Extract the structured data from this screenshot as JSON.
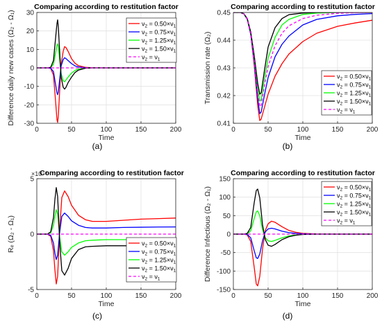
{
  "panel_labels": [
    "(a)",
    "(b)",
    "(c)",
    "(d)"
  ],
  "legend_entries": [
    {
      "sub": "2",
      "text": " = 0.50×ν",
      "sub2": "1",
      "color": "#ff0000",
      "dash": false
    },
    {
      "sub": "2",
      "text": " = 0.75×ν",
      "sub2": "1",
      "color": "#0000ff",
      "dash": false
    },
    {
      "sub": "2",
      "text": " = 1.25×ν",
      "sub2": "1",
      "color": "#00ff00",
      "dash": false
    },
    {
      "sub": "2",
      "text": " = 1.50×ν",
      "sub2": "1",
      "color": "#000000",
      "dash": false
    },
    {
      "sub": "2",
      "text": " = ν",
      "sub2": "1",
      "color": "#ff00ff",
      "dash": true
    }
  ],
  "chart_data": [
    {
      "type": "line",
      "title": "Comparing according to restitution factor",
      "xlabel": "Time",
      "ylabel": "Difference daily new cases (Ω₂ - Ω₁)",
      "xlim": [
        0,
        200
      ],
      "ylim": [
        -30,
        30
      ],
      "xticks": [
        0,
        50,
        100,
        150,
        200
      ],
      "yticks": [
        -30,
        -20,
        -10,
        0,
        10,
        20,
        30
      ],
      "ytick_labels": [
        "-30",
        "-20",
        "-10",
        "0",
        "10",
        "20",
        "30"
      ],
      "exponent_label": "",
      "grid": true,
      "legend_position": "top-right",
      "series": [
        {
          "name": "ν₂ = 0.50×ν₁",
          "color": "#ff0000",
          "x": [
            0,
            15,
            20,
            24,
            27,
            29,
            30,
            31,
            33,
            35,
            38,
            40,
            42,
            45,
            50,
            55,
            60,
            70,
            80,
            100,
            120,
            150,
            200
          ],
          "y": [
            0,
            0,
            -0.3,
            -4,
            -18,
            -28,
            -29.5,
            -26,
            -12,
            2,
            9,
            11.5,
            11,
            9,
            5,
            2.5,
            1.2,
            0.3,
            0.1,
            0,
            0,
            0,
            0
          ]
        },
        {
          "name": "ν₂ = 0.75×ν₁",
          "color": "#0000ff",
          "x": [
            0,
            15,
            20,
            24,
            27,
            29,
            30,
            31,
            33,
            35,
            38,
            40,
            42,
            45,
            50,
            55,
            60,
            70,
            80,
            100,
            120,
            150,
            200
          ],
          "y": [
            0,
            0,
            -0.2,
            -2,
            -9,
            -13.5,
            -14.5,
            -13,
            -6,
            1,
            4.5,
            5.5,
            5,
            4,
            2.3,
            1.1,
            0.5,
            0.1,
            0,
            0,
            0,
            0,
            0
          ]
        },
        {
          "name": "ν₂ = 1.25×ν₁",
          "color": "#00ff00",
          "x": [
            0,
            15,
            20,
            24,
            27,
            29,
            30,
            31,
            33,
            35,
            38,
            40,
            42,
            45,
            50,
            55,
            60,
            70,
            80,
            100,
            120,
            150,
            200
          ],
          "y": [
            0,
            0,
            0.2,
            2,
            8,
            12,
            13,
            11.5,
            4,
            -3,
            -7,
            -7.5,
            -6.5,
            -5,
            -2.8,
            -1.4,
            -0.6,
            -0.1,
            0,
            0,
            0,
            0,
            0
          ]
        },
        {
          "name": "ν₂ = 1.50×ν₁",
          "color": "#000000",
          "x": [
            0,
            15,
            20,
            24,
            27,
            29,
            30,
            31,
            33,
            35,
            38,
            40,
            42,
            45,
            50,
            55,
            60,
            70,
            80,
            100,
            120,
            150,
            200
          ],
          "y": [
            0,
            0,
            0.3,
            4,
            16,
            24,
            26,
            22,
            8,
            -5,
            -10.5,
            -11.5,
            -10.5,
            -8,
            -5,
            -2.5,
            -1.2,
            -0.2,
            0,
            0,
            0,
            0,
            0
          ]
        },
        {
          "name": "ν₂ = ν₁",
          "color": "#ff00ff",
          "dash": true,
          "x": [
            0,
            200
          ],
          "y": [
            0,
            0
          ]
        }
      ]
    },
    {
      "type": "line",
      "title": "Comparing according to restitution factor",
      "xlabel": "Time",
      "ylabel": "Transmission rate (Ω₂)",
      "xlim": [
        0,
        200
      ],
      "ylim": [
        0.41,
        0.45
      ],
      "xticks": [
        0,
        50,
        100,
        150,
        200
      ],
      "yticks": [
        0.41,
        0.42,
        0.43,
        0.44,
        0.45
      ],
      "ytick_labels": [
        "0.41",
        "0.42",
        "0.43",
        "0.44",
        "0.45"
      ],
      "exponent_label": "",
      "grid": true,
      "legend_position": "bottom-right",
      "series": [
        {
          "name": "ν₂ = 0.50×ν₁",
          "color": "#ff0000",
          "x": [
            0,
            10,
            15,
            20,
            25,
            30,
            35,
            38,
            40,
            45,
            50,
            60,
            70,
            80,
            100,
            120,
            150,
            175,
            200
          ],
          "y": [
            0.45,
            0.45,
            0.4495,
            0.4475,
            0.442,
            0.431,
            0.4165,
            0.411,
            0.4115,
            0.416,
            0.4205,
            0.427,
            0.4315,
            0.435,
            0.4395,
            0.4425,
            0.445,
            0.4462,
            0.4472
          ]
        },
        {
          "name": "ν₂ = 0.75×ν₁",
          "color": "#0000ff",
          "x": [
            0,
            10,
            15,
            20,
            25,
            30,
            35,
            38,
            40,
            45,
            50,
            60,
            70,
            80,
            100,
            120,
            150,
            175,
            200
          ],
          "y": [
            0.45,
            0.45,
            0.4495,
            0.4475,
            0.442,
            0.432,
            0.419,
            0.4135,
            0.414,
            0.4205,
            0.4265,
            0.434,
            0.4385,
            0.4415,
            0.4455,
            0.4475,
            0.4488,
            0.4493,
            0.4496
          ]
        },
        {
          "name": "ν₂ = 1.25×ν₁",
          "color": "#00ff00",
          "x": [
            0,
            10,
            15,
            20,
            25,
            30,
            35,
            38,
            40,
            45,
            50,
            60,
            70,
            80,
            100,
            120,
            150,
            175,
            200
          ],
          "y": [
            0.45,
            0.45,
            0.4495,
            0.4477,
            0.4425,
            0.4335,
            0.4225,
            0.418,
            0.4185,
            0.4265,
            0.4335,
            0.441,
            0.4455,
            0.4475,
            0.4493,
            0.4498,
            0.45,
            0.45,
            0.45
          ]
        },
        {
          "name": "ν₂ = 1.50×ν₁",
          "color": "#000000",
          "x": [
            0,
            10,
            15,
            20,
            25,
            30,
            35,
            38,
            40,
            45,
            50,
            60,
            70,
            80,
            100,
            120,
            150,
            175,
            200
          ],
          "y": [
            0.45,
            0.45,
            0.4496,
            0.4478,
            0.443,
            0.4345,
            0.4245,
            0.4205,
            0.421,
            0.4295,
            0.4375,
            0.4445,
            0.4478,
            0.4492,
            0.4498,
            0.45,
            0.45,
            0.45,
            0.45
          ]
        },
        {
          "name": "ν₂ = ν₁",
          "color": "#ff00ff",
          "dash": true,
          "x": [
            0,
            10,
            15,
            20,
            25,
            30,
            35,
            38,
            40,
            45,
            50,
            60,
            70,
            80,
            100,
            120,
            150,
            175,
            200
          ],
          "y": [
            0.45,
            0.45,
            0.4495,
            0.4476,
            0.4423,
            0.4328,
            0.4208,
            0.416,
            0.4165,
            0.424,
            0.4305,
            0.438,
            0.4425,
            0.4452,
            0.4478,
            0.449,
            0.4497,
            0.4499,
            0.45
          ]
        }
      ]
    },
    {
      "type": "line",
      "title": "Comparing according to restitution factor",
      "xlabel": "Time",
      "ylabel": "Rₑ (Ω₂ - Ω₁)",
      "xlim": [
        0,
        200
      ],
      "ylim": [
        -0.005,
        0.005
      ],
      "xticks": [
        0,
        50,
        100,
        150,
        200
      ],
      "yticks": [
        -0.005,
        0,
        0.005
      ],
      "ytick_labels": [
        "-5",
        "0",
        "5"
      ],
      "exponent_label": "×10⁻³",
      "grid": true,
      "legend_position": "bottom-right",
      "series": [
        {
          "name": "ν₂ = 0.50×ν₁",
          "color": "#ff0000",
          "x": [
            0,
            15,
            20,
            24,
            26,
            28,
            30,
            33,
            36,
            40,
            45,
            50,
            60,
            70,
            80,
            100,
            125,
            150,
            175,
            200
          ],
          "y": [
            0,
            0,
            -0.0002,
            -0.0015,
            -0.0032,
            -0.0045,
            -0.0038,
            0.0005,
            0.0033,
            0.0039,
            0.0034,
            0.0026,
            0.0017,
            0.0013,
            0.00115,
            0.00115,
            0.00125,
            0.00135,
            0.0014,
            0.00145
          ]
        },
        {
          "name": "ν₂ = 0.75×ν₁",
          "color": "#0000ff",
          "x": [
            0,
            15,
            20,
            24,
            26,
            28,
            30,
            33,
            36,
            40,
            45,
            50,
            60,
            70,
            80,
            100,
            125,
            150,
            175,
            200
          ],
          "y": [
            0,
            0,
            -0.0001,
            -0.0008,
            -0.0017,
            -0.0023,
            -0.0019,
            0.0002,
            0.0016,
            0.0019,
            0.0016,
            0.0012,
            0.0008,
            0.0006,
            0.00055,
            0.00055,
            0.0006,
            0.00062,
            0.00064,
            0.00065
          ]
        },
        {
          "name": "ν₂ = 1.25×ν₁",
          "color": "#00ff00",
          "x": [
            0,
            15,
            20,
            24,
            26,
            28,
            30,
            33,
            36,
            40,
            45,
            50,
            60,
            70,
            80,
            100,
            125,
            150,
            175,
            200
          ],
          "y": [
            0,
            0,
            0.0001,
            0.0008,
            0.0016,
            0.0022,
            0.0018,
            -0.0003,
            -0.0016,
            -0.0019,
            -0.0016,
            -0.0012,
            -0.0008,
            -0.0006,
            -0.00055,
            -0.0005,
            -0.0005,
            -0.0005,
            -0.0005,
            -0.0005
          ]
        },
        {
          "name": "ν₂ = 1.50×ν₁",
          "color": "#000000",
          "x": [
            0,
            15,
            20,
            24,
            26,
            28,
            30,
            33,
            36,
            40,
            45,
            50,
            60,
            70,
            80,
            100,
            125,
            150,
            175,
            200
          ],
          "y": [
            0,
            0,
            0.0002,
            0.0015,
            0.0031,
            0.0042,
            0.0034,
            -0.0008,
            -0.0033,
            -0.0037,
            -0.0031,
            -0.0022,
            -0.0014,
            -0.00115,
            -0.0011,
            -0.00105,
            -0.00105,
            -0.00105,
            -0.00105,
            -0.00105
          ]
        },
        {
          "name": "ν₂ = ν₁",
          "color": "#ff00ff",
          "dash": true,
          "x": [
            0,
            200
          ],
          "y": [
            0,
            0
          ]
        }
      ]
    },
    {
      "type": "line",
      "title": "Comparing according to restitution factor",
      "xlabel": "Time",
      "ylabel": "Difference Infectious (Ω₂ - Ω₁)",
      "xlim": [
        0,
        200
      ],
      "ylim": [
        -150,
        150
      ],
      "xticks": [
        0,
        50,
        100,
        150,
        200
      ],
      "yticks": [
        -150,
        -100,
        -50,
        0,
        50,
        100,
        150
      ],
      "ytick_labels": [
        "-150",
        "-100",
        "-50",
        "0",
        "50",
        "100",
        "150"
      ],
      "exponent_label": "",
      "grid": true,
      "legend_position": "top-right",
      "series": [
        {
          "name": "ν₂ = 0.50×ν₁",
          "color": "#ff0000",
          "x": [
            0,
            15,
            20,
            25,
            30,
            33,
            35,
            38,
            42,
            46,
            50,
            55,
            60,
            70,
            80,
            90,
            100,
            120,
            150,
            200
          ],
          "y": [
            0,
            0,
            -2,
            -20,
            -90,
            -135,
            -140,
            -115,
            -40,
            10,
            28,
            35,
            32,
            20,
            10,
            5,
            2,
            0.5,
            0,
            0
          ]
        },
        {
          "name": "ν₂ = 0.75×ν₁",
          "color": "#0000ff",
          "x": [
            0,
            15,
            20,
            25,
            30,
            33,
            35,
            38,
            42,
            46,
            50,
            55,
            60,
            70,
            80,
            90,
            100,
            120,
            150,
            200
          ],
          "y": [
            0,
            0,
            -1,
            -10,
            -45,
            -64,
            -66,
            -54,
            -18,
            6,
            14,
            16,
            14,
            8,
            4,
            2,
            1,
            0,
            0,
            0
          ]
        },
        {
          "name": "ν₂ = 1.25×ν₁",
          "color": "#00ff00",
          "x": [
            0,
            15,
            20,
            25,
            30,
            33,
            35,
            38,
            42,
            46,
            50,
            55,
            60,
            70,
            80,
            90,
            100,
            120,
            150,
            200
          ],
          "y": [
            0,
            0,
            1,
            9,
            42,
            60,
            63,
            50,
            12,
            -10,
            -18,
            -20,
            -17,
            -10,
            -5,
            -2,
            -1,
            0,
            0,
            0
          ]
        },
        {
          "name": "ν₂ = 1.50×ν₁",
          "color": "#000000",
          "x": [
            0,
            15,
            20,
            25,
            30,
            33,
            35,
            38,
            42,
            46,
            50,
            55,
            60,
            70,
            80,
            90,
            100,
            120,
            150,
            200
          ],
          "y": [
            0,
            0,
            2,
            18,
            85,
            118,
            122,
            98,
            25,
            -15,
            -30,
            -33,
            -28,
            -15,
            -7,
            -3,
            -1,
            0,
            0,
            0
          ]
        },
        {
          "name": "ν₂ = ν₁",
          "color": "#ff00ff",
          "dash": true,
          "x": [
            0,
            200
          ],
          "y": [
            0,
            0
          ]
        }
      ]
    }
  ]
}
